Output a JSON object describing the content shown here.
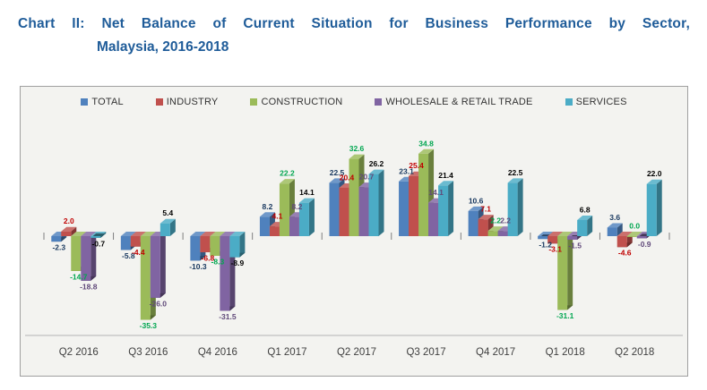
{
  "title": {
    "line1": "Chart II: Net Balance of Current Situation for Business Performance by Sector,",
    "line2": "Malaysia, 2016-2018",
    "color": "#1F5C99"
  },
  "chart_data": {
    "type": "bar",
    "style": "3d-clustered-column",
    "categories": [
      "Q2 2016",
      "Q3 2016",
      "Q4 2016",
      "Q1 2017",
      "Q2 2017",
      "Q3 2017",
      "Q4 2017",
      "Q1 2018",
      "Q2 2018"
    ],
    "series": [
      {
        "name": "TOTAL",
        "color": "#4F81BD",
        "label_color": "#17375E",
        "values": [
          -2.3,
          -5.8,
          -10.3,
          8.2,
          22.5,
          23.1,
          10.6,
          -1.2,
          3.6
        ]
      },
      {
        "name": "INDUSTRY",
        "color": "#C0504D",
        "label_color": "#C00000",
        "values": [
          2.0,
          -4.4,
          -6.8,
          4.1,
          20.4,
          25.4,
          7.1,
          -3.1,
          -4.6
        ]
      },
      {
        "name": "CONSTRUCTION",
        "color": "#9BBB59",
        "label_color": "#00A650",
        "values": [
          -14.7,
          -35.3,
          -8.3,
          22.2,
          32.6,
          34.8,
          2.2,
          -31.1,
          0.0
        ]
      },
      {
        "name": "WHOLESALE & RETAIL TRADE",
        "color": "#8064A2",
        "label_color": "#60497A",
        "values": [
          -18.8,
          -26.0,
          -31.5,
          8.2,
          20.7,
          14.1,
          2.2,
          -1.5,
          -0.9
        ]
      },
      {
        "name": "SERVICES",
        "color": "#4BACC6",
        "label_color": "#000000",
        "values": [
          -0.7,
          5.4,
          -8.9,
          14.1,
          26.2,
          21.4,
          22.5,
          6.8,
          22.0
        ]
      }
    ],
    "ylim": [
      -40,
      40
    ],
    "grid": false,
    "legend_position": "top",
    "value_label_decimals": 1,
    "xlabel": "",
    "ylabel": ""
  }
}
